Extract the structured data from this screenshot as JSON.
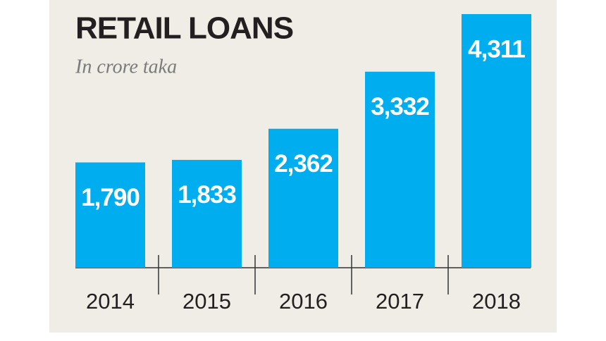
{
  "chart_data": {
    "type": "bar",
    "title": "RETAIL LOANS",
    "subtitle": "In crore taka",
    "categories": [
      "2014",
      "2015",
      "2016",
      "2017",
      "2018"
    ],
    "values": [
      1790,
      1833,
      2362,
      3332,
      4311
    ],
    "value_labels": [
      "1,790",
      "1,833",
      "2,362",
      "3,332",
      "4,311"
    ],
    "color": "#00aeef"
  }
}
